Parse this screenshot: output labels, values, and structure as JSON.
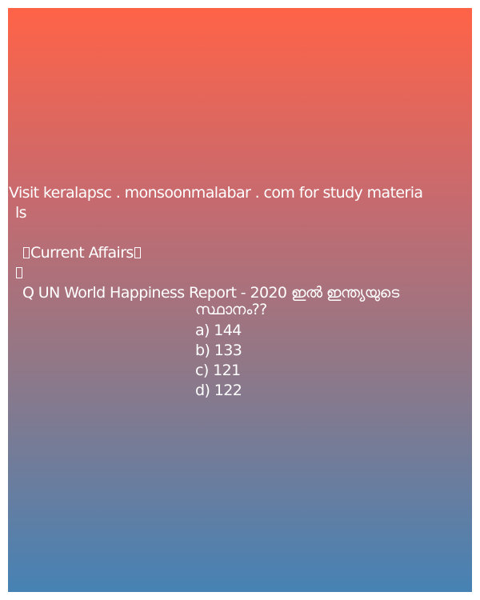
{
  "post": {
    "site_line_1": "Visit keralapsc . monsoonmalabar . com for study materia",
    "site_line_2": "ls",
    "heading": "Current Affairs",
    "question_line_1": "Q UN World Happiness Report - 2020 ഇൽ ഇന്ത്യയുടെ",
    "question_line_2": "സ്ഥാനം??",
    "options": [
      "a) 144",
      "b) 133",
      "c) 121",
      "d) 122"
    ]
  },
  "colors": {
    "gradient_top": "#ff6347",
    "gradient_bottom": "#4682b4",
    "text": "#ffffff"
  }
}
